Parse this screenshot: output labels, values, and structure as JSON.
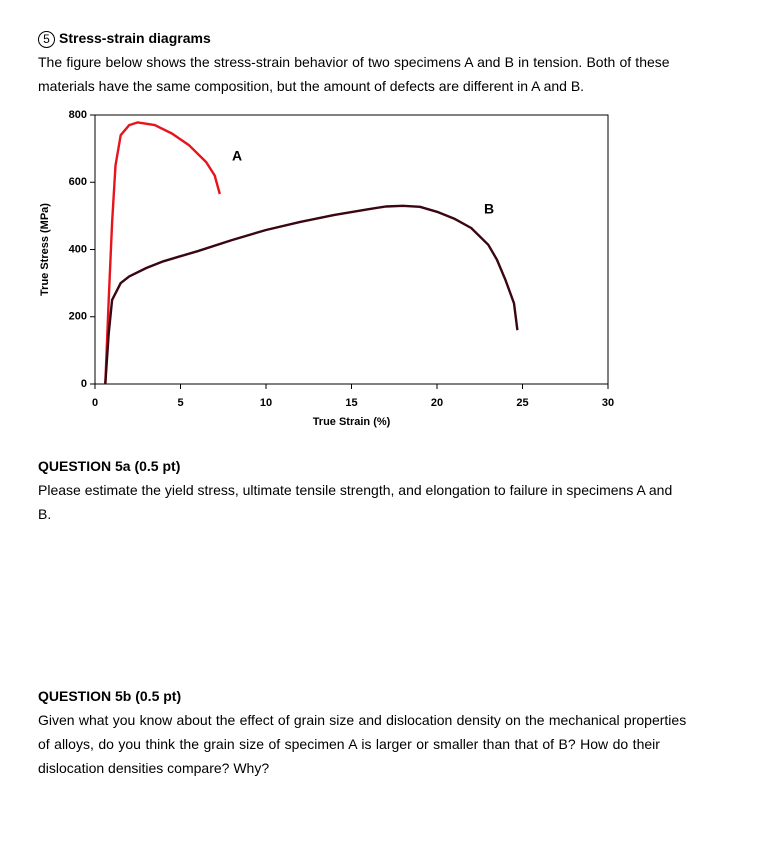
{
  "header": {
    "number": "5",
    "title": "Stress-strain diagrams"
  },
  "intro": [
    "The figure below shows the stress-strain behavior of two specimens A and B in tension.  Both of these",
    "materials have the same composition, but the amount of defects are different in A and B."
  ],
  "chart_data": {
    "type": "line",
    "xlabel": "True Strain (%)",
    "ylabel": "True Stress (MPa)",
    "xlim": [
      0,
      30
    ],
    "xticks": [
      0,
      5,
      10,
      15,
      20,
      25,
      30
    ],
    "ylim": [
      0,
      800
    ],
    "yticks": [
      0,
      200,
      400,
      600,
      800
    ],
    "series": [
      {
        "name": "A",
        "color": "#e8141c",
        "x": [
          0.6,
          0.8,
          1.0,
          1.2,
          1.5,
          2.0,
          2.5,
          3.5,
          4.5,
          5.5,
          6.5,
          7.0,
          7.3
        ],
        "values": [
          0,
          250,
          480,
          650,
          740,
          770,
          778,
          770,
          745,
          710,
          660,
          620,
          565
        ]
      },
      {
        "name": "B",
        "color": "#3a0612",
        "x": [
          0.6,
          0.8,
          1.0,
          1.5,
          2,
          3,
          4,
          5,
          6,
          8,
          10,
          12,
          14,
          16,
          17,
          18,
          19,
          20,
          21,
          22,
          23,
          23.5,
          24,
          24.5,
          24.7
        ],
        "values": [
          0,
          150,
          250,
          300,
          320,
          345,
          365,
          380,
          395,
          428,
          458,
          482,
          503,
          520,
          528,
          530,
          527,
          512,
          492,
          464,
          414,
          370,
          310,
          240,
          160
        ]
      }
    ]
  },
  "questions": [
    {
      "title": "QUESTION 5a (0.5 pt)",
      "lines": [
        "Please estimate the yield stress, ultimate tensile strength, and elongation to failure in specimens A and",
        "B."
      ]
    },
    {
      "title": "QUESTION 5b (0.5 pt)",
      "lines": [
        "Given what you know about the effect of grain size and dislocation density on the mechanical properties",
        "of alloys, do you think the grain size of specimen A is larger or smaller than that of B?  How do their",
        "dislocation densities compare? Why?"
      ]
    }
  ]
}
